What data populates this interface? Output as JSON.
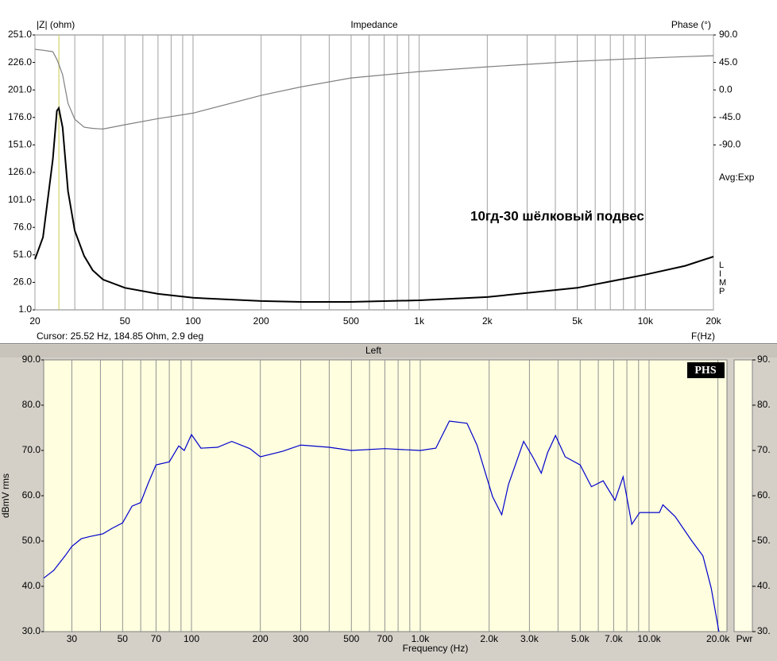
{
  "chart_data": [
    {
      "type": "line",
      "title": "Impedance",
      "ylabel": "|Z| (ohm)",
      "y2label": "Phase (°)",
      "xlabel": "F(Hz)",
      "xscale": "log",
      "x": [
        20,
        21.7,
        24,
        25,
        25.5,
        26.5,
        28,
        30,
        33,
        36,
        40,
        50,
        70,
        100,
        200,
        300,
        500,
        1000,
        2000,
        5000,
        10000,
        15000,
        20000
      ],
      "xlim": [
        20,
        20000
      ],
      "xticks": [
        20,
        50,
        100,
        200,
        500,
        {
          "value": 1000,
          "label": "1k"
        },
        {
          "value": 2000,
          "label": "2k"
        },
        {
          "value": 5000,
          "label": "5k"
        },
        {
          "value": 10000,
          "label": "10k"
        },
        {
          "value": 20000,
          "label": "20k"
        }
      ],
      "xgrid": [
        30,
        40,
        60,
        70,
        80,
        90,
        300,
        400,
        600,
        700,
        800,
        900,
        3000,
        4000,
        6000,
        7000,
        8000,
        9000
      ],
      "ylim": [
        1,
        251
      ],
      "yticks": [
        {
          "value": 251,
          "label": "251.0"
        },
        {
          "value": 226,
          "label": "226.0"
        },
        {
          "value": 201,
          "label": "201.0"
        },
        {
          "value": 176,
          "label": "176.0"
        },
        {
          "value": 151,
          "label": "151.0"
        },
        {
          "value": 126,
          "label": "126.0"
        },
        {
          "value": 101,
          "label": "101.0"
        },
        {
          "value": 76,
          "label": "76.0"
        },
        {
          "value": 51,
          "label": "51.0"
        },
        {
          "value": 26,
          "label": "26.0"
        },
        {
          "value": 1,
          "label": "1.0"
        }
      ],
      "y2lim": [
        -360,
        90
      ],
      "y2ticks": [
        {
          "value": 90,
          "label": "90.0"
        },
        {
          "value": 45,
          "label": "45.0"
        },
        {
          "value": 0,
          "label": "0.0"
        },
        {
          "value": -45,
          "label": "-45.0"
        },
        {
          "value": -90,
          "label": "-90.0"
        }
      ],
      "series": [
        {
          "color": "#000000",
          "values": [
            47,
            67,
            138,
            182,
            184.5,
            167,
            109,
            73,
            50,
            37,
            28.5,
            21,
            15.5,
            12,
            9,
            8.2,
            8.2,
            9.7,
            12.6,
            21,
            33,
            41,
            49.4
          ]
        },
        {
          "color": "#808080",
          "axis": "y2",
          "values": [
            66.5,
            65,
            62.6,
            50,
            42,
            25,
            -22,
            -48,
            -61,
            -63,
            -64,
            -57,
            -47,
            -38,
            -9,
            5,
            19.6,
            30,
            37.8,
            47,
            52,
            54.5,
            56
          ]
        }
      ],
      "annotations": [
        "Avg:Exp",
        "10гд-30 шёлковый подвес",
        "LIMP"
      ],
      "cursor": {
        "x": 25.52,
        "label": "Cursor: 25.52 Hz, 184.85 Ohm, 2.9 deg",
        "color": "#c8c850"
      }
    },
    {
      "type": "line",
      "title": "Left",
      "ylabel": "dBmV rms",
      "xlabel": "Frequency (Hz)",
      "xscale": "log",
      "x": [
        22.6,
        25,
        28,
        30,
        33,
        36,
        41,
        45,
        50,
        55,
        60,
        65,
        70,
        80,
        88,
        93,
        100,
        110,
        130,
        150,
        180,
        200,
        250,
        300,
        400,
        500,
        700,
        1000,
        1170,
        1340,
        1600,
        1770,
        1900,
        2070,
        2270,
        2430,
        2830,
        3100,
        3380,
        3600,
        3900,
        4300,
        5000,
        5600,
        6300,
        7100,
        7700,
        8400,
        9100,
        11100,
        11500,
        13000,
        15300,
        17200,
        18700,
        20200
      ],
      "xlim": [
        22.6,
        21900
      ],
      "xticks": [
        30,
        50,
        70,
        100,
        200,
        300,
        500,
        700,
        {
          "value": 1000,
          "label": "1.0k"
        },
        {
          "value": 2000,
          "label": "2.0k"
        },
        {
          "value": 3000,
          "label": "3.0k"
        },
        {
          "value": 5000,
          "label": "5.0k"
        },
        {
          "value": 7000,
          "label": "7.0k"
        },
        {
          "value": 10000,
          "label": "10.0k"
        },
        {
          "value": 20000,
          "label": "20.0k"
        }
      ],
      "xgrid": [
        40,
        60,
        80,
        90,
        400,
        600,
        800,
        900,
        4000,
        6000,
        8000,
        9000
      ],
      "ylim": [
        30,
        90
      ],
      "yticks": [
        {
          "value": 90,
          "label": "90.0"
        },
        {
          "value": 80,
          "label": "80.0"
        },
        {
          "value": 70,
          "label": "70.0"
        },
        {
          "value": 60,
          "label": "60.0"
        },
        {
          "value": 50,
          "label": "50.0"
        },
        {
          "value": 40,
          "label": "40.0"
        },
        {
          "value": 30,
          "label": "30.0"
        }
      ],
      "series": [
        {
          "color": "#0000cc",
          "values": [
            41.8,
            43.5,
            46.7,
            48.8,
            50.5,
            51,
            51.6,
            52.8,
            54,
            57.7,
            58.5,
            63,
            66.8,
            67.5,
            71,
            70,
            73.5,
            70.5,
            70.7,
            72,
            70.4,
            68.6,
            69.8,
            71.2,
            70.7,
            70,
            70.4,
            70,
            70.5,
            76.5,
            76,
            71.2,
            66,
            59.8,
            55.8,
            62.5,
            72,
            68.6,
            65,
            69.5,
            73.3,
            68.6,
            66.8,
            62,
            63.3,
            59,
            64.2,
            53.7,
            56.3,
            56.3,
            58,
            55.4,
            50.2,
            46.7,
            39.6,
            30
          ]
        }
      ],
      "badge": "PHS",
      "meter": {
        "label": "Pwr",
        "ticks": [
          {
            "value": 90,
            "label": "90."
          },
          {
            "value": 80,
            "label": "80."
          },
          {
            "value": 70,
            "label": "70."
          },
          {
            "value": 60,
            "label": "60."
          },
          {
            "value": 50,
            "label": "50."
          },
          {
            "value": 40,
            "label": "40."
          },
          {
            "value": 30,
            "label": "30."
          }
        ]
      }
    }
  ]
}
